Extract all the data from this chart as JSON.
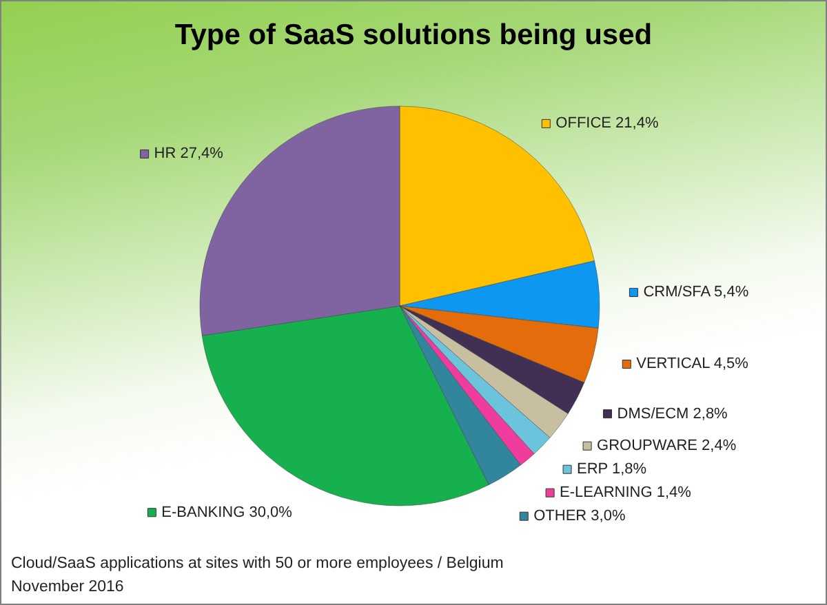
{
  "chart_data": {
    "type": "pie",
    "title": "Type of SaaS solutions being used",
    "categories": [
      "OFFICE",
      "CRM/SFA",
      "VERTICAL",
      "DMS/ECM",
      "GROUPWARE",
      "ERP",
      "E-LEARNING",
      "OTHER",
      "E-BANKING",
      "HR"
    ],
    "values": [
      21.4,
      5.4,
      4.5,
      2.8,
      2.4,
      1.8,
      1.4,
      3.0,
      30.0,
      27.4
    ],
    "value_labels": [
      "21,4%",
      "5,4%",
      "4,5%",
      "2,8%",
      "2,4%",
      "1,8%",
      "1,4%",
      "3,0%",
      "30,0%",
      "27,4%"
    ],
    "colors": [
      "#ffc000",
      "#0d97f0",
      "#e46c0a",
      "#413053",
      "#c8bfa0",
      "#6cc4dc",
      "#f03c9c",
      "#31859c",
      "#17b04f",
      "#8064a2"
    ],
    "legend": "right",
    "annotations": [
      "Cloud/SaaS applications at sites with 50 or more employees / Belgium",
      "November 2016"
    ]
  }
}
